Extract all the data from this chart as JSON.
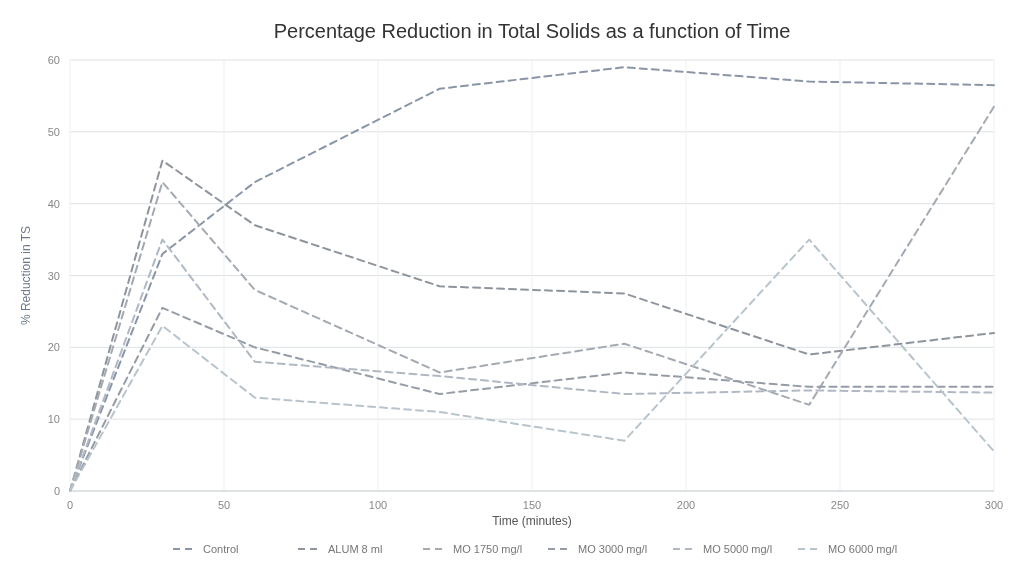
{
  "chart_data": {
    "type": "line",
    "title": "Percentage Reduction in Total Solids as a function of Time",
    "xlabel": "Time (minutes)",
    "ylabel": "% Reduction in TS",
    "x": [
      0,
      30,
      60,
      120,
      180,
      240,
      300
    ],
    "series": [
      {
        "name": "Control",
        "color": "#8a96a8",
        "values": [
          0,
          33,
          43,
          56,
          59,
          57,
          56.5
        ]
      },
      {
        "name": "ALUM 8 ml",
        "color": "#8e949c",
        "values": [
          0,
          46,
          37,
          28.5,
          27.5,
          19,
          22
        ]
      },
      {
        "name": "MO 1750 mg/l",
        "color": "#a4aab2",
        "values": [
          0,
          43,
          28,
          16.5,
          20.5,
          12,
          53.5
        ]
      },
      {
        "name": "MO 3000 mg/l",
        "color": "#969ca6",
        "values": [
          0,
          25.5,
          20,
          13.5,
          16.5,
          14.5,
          14.5
        ]
      },
      {
        "name": "MO 5000 mg/l",
        "color": "#b0b8c4",
        "values": [
          0,
          35,
          18,
          16,
          13.5,
          14,
          13.7
        ]
      },
      {
        "name": "MO 6000 mg/l",
        "color": "#b8c4cc",
        "values": [
          0,
          23,
          13,
          11,
          7,
          35,
          5.5
        ]
      }
    ],
    "xlim": [
      0,
      300
    ],
    "xticks": [
      0,
      50,
      100,
      150,
      200,
      250,
      300
    ],
    "ylim": [
      0,
      60
    ],
    "yticks": [
      0,
      10,
      20,
      30,
      40,
      50,
      60
    ],
    "grid": true,
    "legend": "bottom",
    "line_style": "dashed",
    "marker": "none"
  }
}
